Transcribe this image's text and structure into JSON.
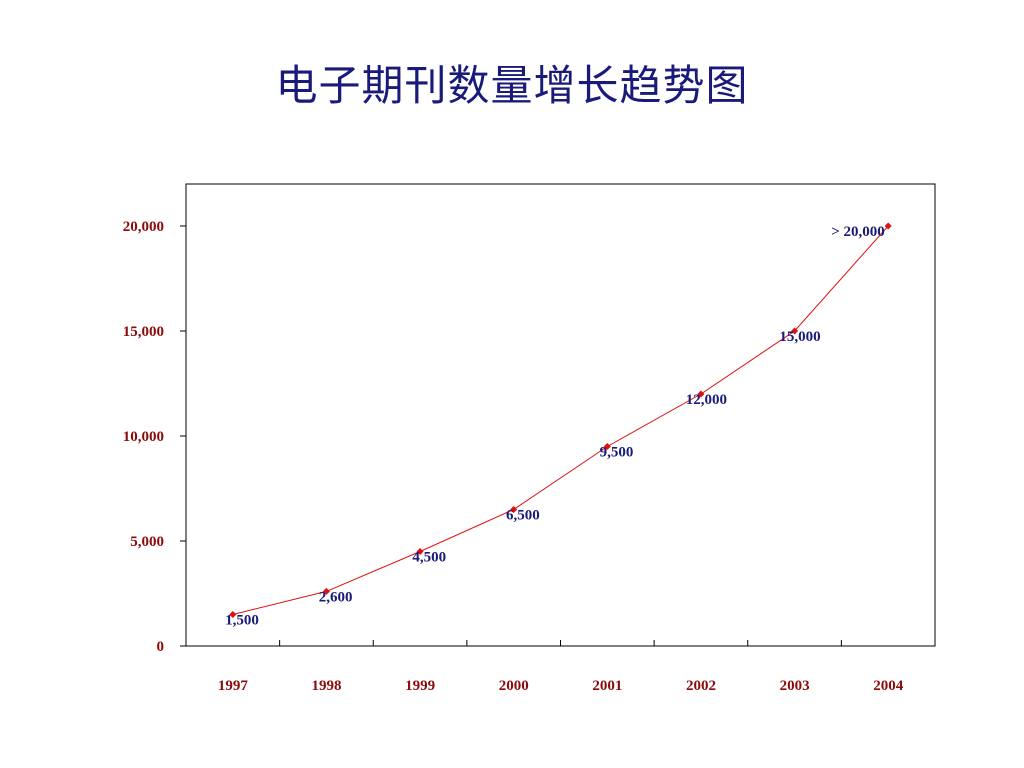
{
  "title": "电子期刊数量增长趋势图",
  "colors": {
    "title": "#1a1a7a",
    "tick_labels": "#8b0a0a",
    "data_labels": "#1a1a7a",
    "line": "#e01010",
    "marker": "#e01010",
    "frame": "#000000"
  },
  "chart_data": {
    "type": "line",
    "title": "电子期刊数量增长趋势图",
    "xlabel": "",
    "ylabel": "",
    "categories": [
      "1997",
      "1998",
      "1999",
      "2000",
      "2001",
      "2002",
      "2003",
      "2004"
    ],
    "values": [
      1500,
      2600,
      4500,
      6500,
      9500,
      12000,
      15000,
      20000
    ],
    "data_labels": [
      "1,500",
      "2,600",
      "4,500",
      "6,500",
      "9,500",
      "12,000",
      "15,000",
      "> 20,000"
    ],
    "ylim": [
      0,
      22000
    ],
    "yticks": [
      0,
      5000,
      10000,
      15000,
      20000
    ],
    "ytick_labels": [
      "0",
      "5,000",
      "10,000",
      "15,000",
      "20,000"
    ],
    "grid": false,
    "legend": "none"
  }
}
